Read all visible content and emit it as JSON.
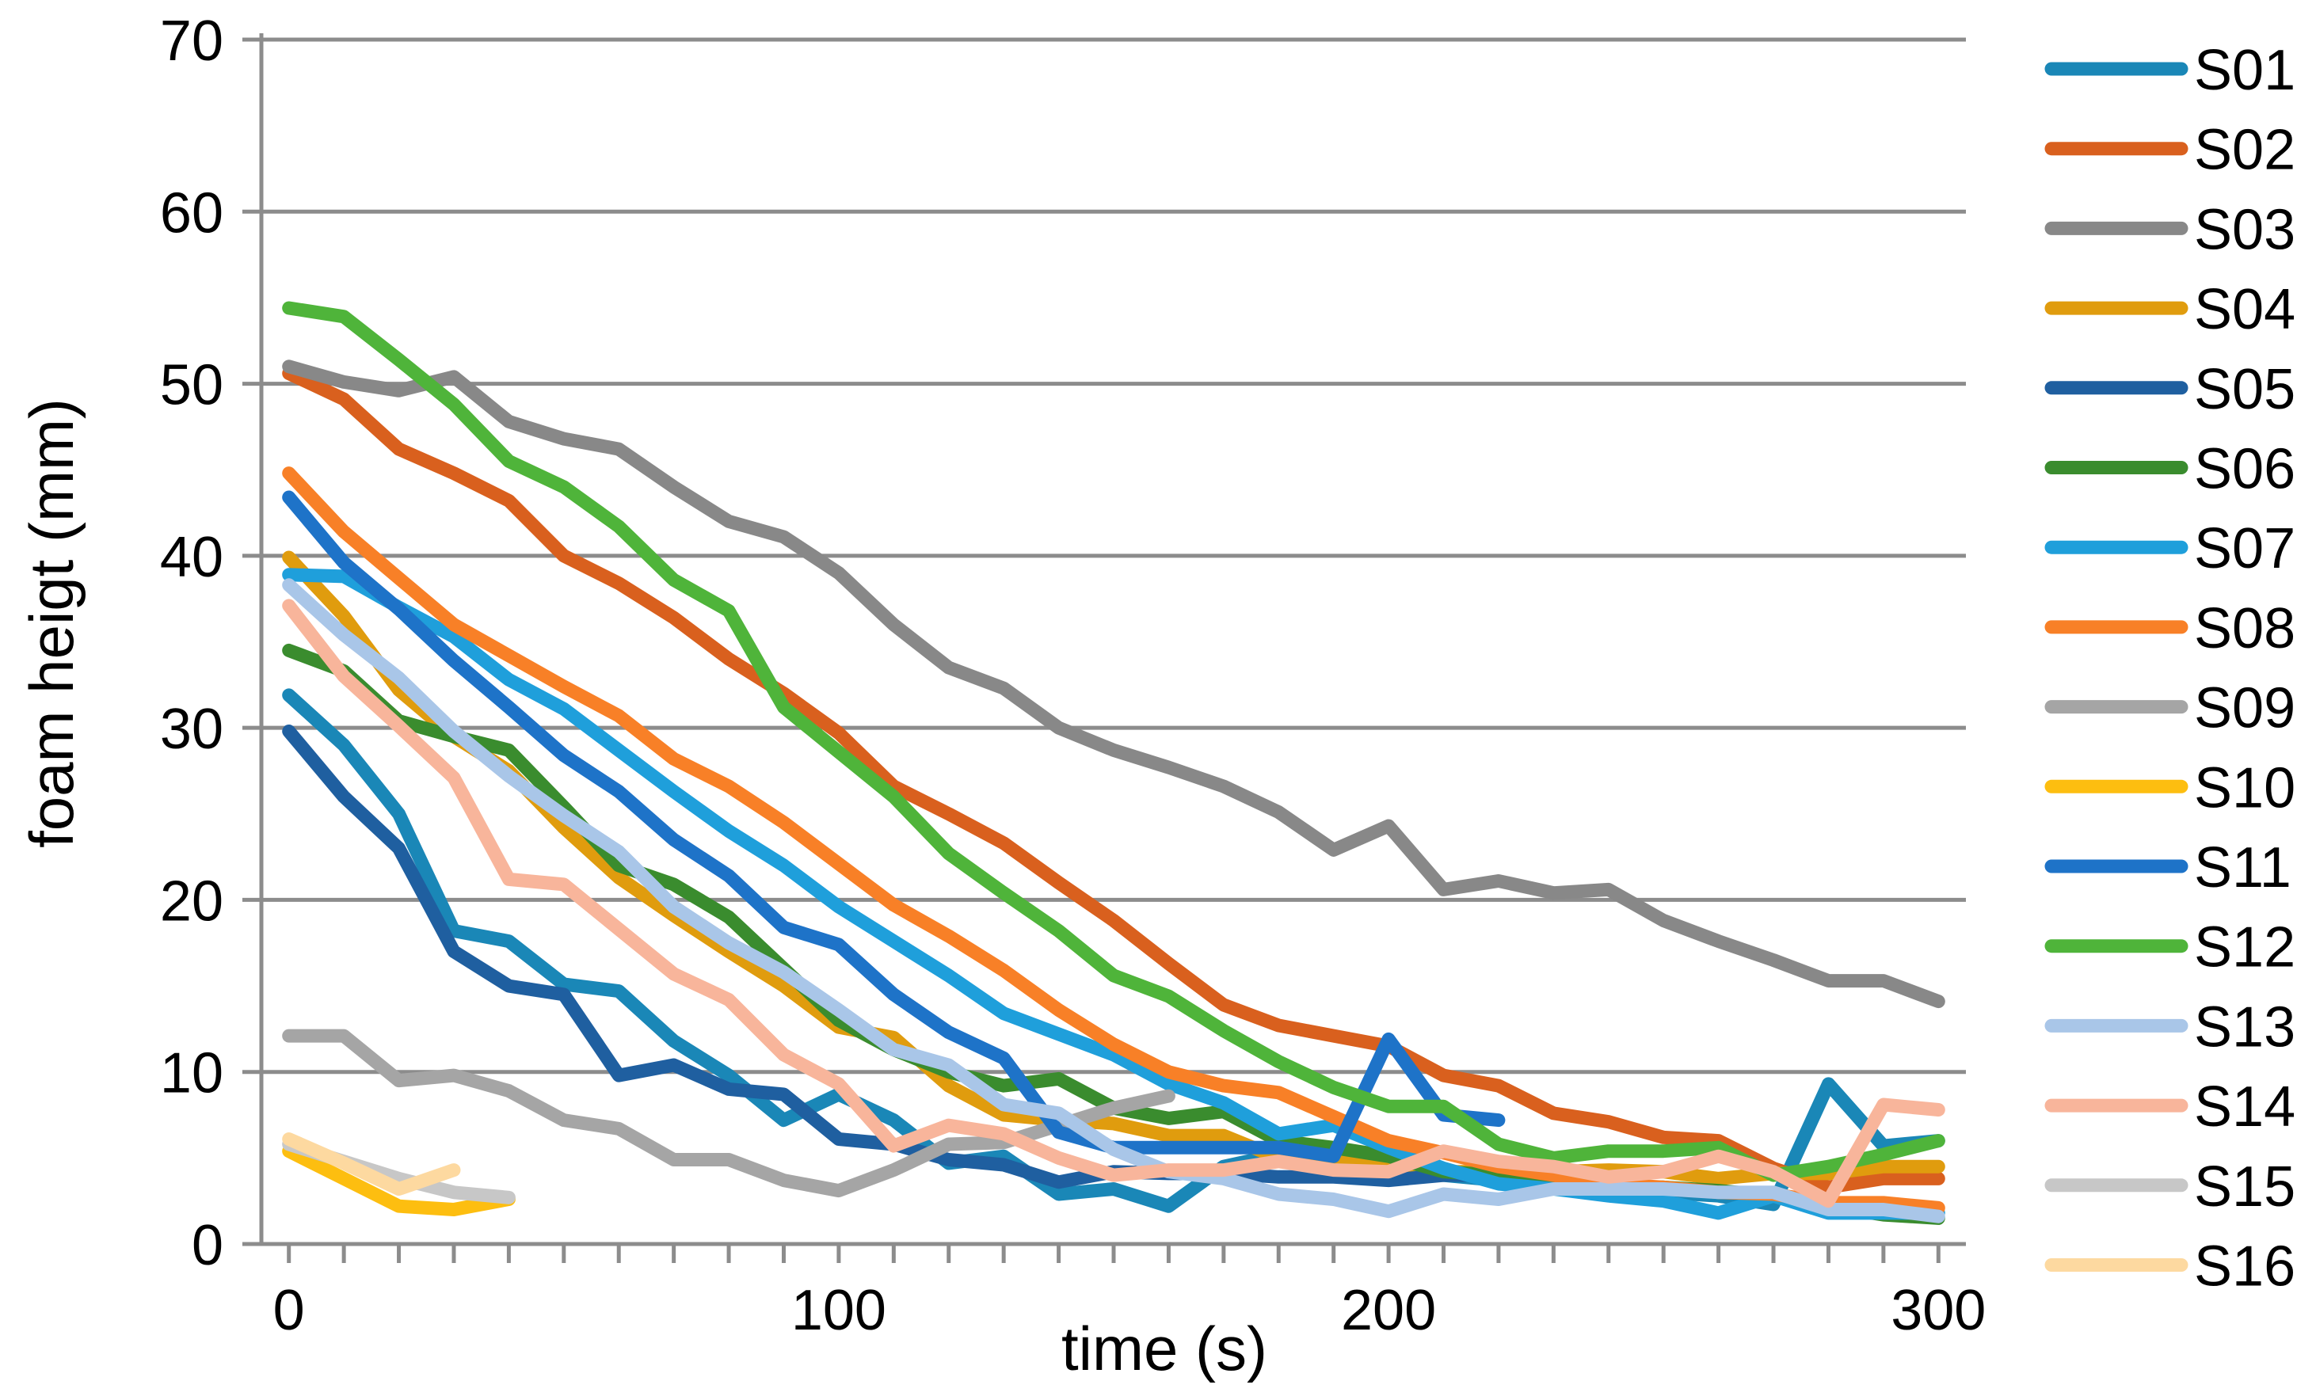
{
  "chart_data": {
    "type": "line",
    "title": "",
    "xlabel": "time (s)",
    "ylabel": "foam heigt (mm)",
    "xlim": [
      -5,
      305
    ],
    "ylim": [
      0,
      70
    ],
    "xticks": [
      0,
      100,
      200,
      300
    ],
    "yticks": [
      0,
      10,
      20,
      30,
      40,
      50,
      60,
      70
    ],
    "minor_xtick_step": 10,
    "grid": "horizontal",
    "legend_position": "right",
    "series": [
      {
        "name": "S01",
        "color": "#1A87B7",
        "x": [
          0,
          10,
          20,
          30,
          40,
          50,
          60,
          70,
          80,
          90,
          100,
          110,
          120,
          130,
          140,
          150,
          160,
          170,
          180,
          190,
          200,
          210,
          220,
          230,
          240,
          250,
          260,
          270,
          280,
          290,
          300
        ],
        "y": [
          31.9,
          29,
          25,
          18.2,
          17.6,
          15.1,
          14.7,
          11.8,
          9.8,
          7.2,
          8.7,
          7.2,
          4.7,
          5.1,
          2.9,
          3.2,
          2.2,
          4.5,
          5.2,
          4.5,
          4.3,
          4,
          3.7,
          3.2,
          3.2,
          3,
          2.8,
          2.3,
          9.3,
          5.7,
          6
        ]
      },
      {
        "name": "S02",
        "color": "#D9601E",
        "x": [
          0,
          10,
          20,
          30,
          40,
          50,
          60,
          70,
          80,
          90,
          100,
          110,
          120,
          130,
          140,
          150,
          160,
          170,
          180,
          190,
          200,
          210,
          220,
          230,
          240,
          250,
          260,
          270,
          280,
          290,
          300
        ],
        "y": [
          50.6,
          49.1,
          46.2,
          44.8,
          43.2,
          40,
          38.4,
          36.4,
          34,
          32,
          29.7,
          26.6,
          25,
          23.3,
          21,
          18.8,
          16.3,
          13.9,
          12.7,
          12.1,
          11.5,
          9.8,
          9.2,
          7.6,
          7.1,
          6.2,
          6,
          4.4,
          3.3,
          3.8,
          3.8
        ]
      },
      {
        "name": "S03",
        "color": "#888888",
        "x": [
          0,
          10,
          20,
          30,
          40,
          50,
          60,
          70,
          80,
          90,
          100,
          110,
          120,
          130,
          140,
          150,
          160,
          170,
          180,
          190,
          200,
          210,
          220,
          230,
          240,
          250,
          260,
          270,
          280,
          290,
          300
        ],
        "y": [
          51,
          50.1,
          49.6,
          50.4,
          47.8,
          46.8,
          46.2,
          44,
          42,
          41.1,
          39,
          36,
          33.5,
          32.3,
          30,
          28.7,
          27.7,
          26.6,
          25.1,
          22.9,
          24.3,
          20.6,
          21.1,
          20.4,
          20.6,
          18.8,
          17.6,
          16.5,
          15.3,
          15.3,
          14.1
        ]
      },
      {
        "name": "S04",
        "color": "#E09C0E",
        "x": [
          0,
          10,
          20,
          30,
          40,
          50,
          60,
          70,
          80,
          90,
          100,
          110,
          120,
          130,
          140,
          150,
          160,
          170,
          180,
          190,
          200,
          210,
          220,
          230,
          240,
          250,
          260,
          270,
          280,
          290,
          300
        ],
        "y": [
          39.9,
          36.5,
          32.2,
          29.5,
          27.5,
          24.2,
          21.3,
          19.1,
          17,
          15,
          12.6,
          12,
          9.2,
          7.5,
          7.2,
          7,
          6.3,
          6.3,
          5,
          4.8,
          4.5,
          4.2,
          4.2,
          4.2,
          4.3,
          4.2,
          3.8,
          4.1,
          4.1,
          4.5,
          4.5
        ]
      },
      {
        "name": "S05",
        "color": "#1F5FA0",
        "x": [
          0,
          10,
          20,
          30,
          40,
          50,
          60,
          70,
          80,
          90,
          100,
          110,
          120,
          130,
          140,
          150,
          160,
          170,
          180,
          190,
          200,
          210,
          220
        ],
        "y": [
          29.8,
          26,
          23,
          17,
          15,
          14.5,
          9.8,
          10.4,
          9,
          8.7,
          6.1,
          5.8,
          4.9,
          4.6,
          3.6,
          4.2,
          4.1,
          4.1,
          3.9,
          3.9,
          3.7,
          4,
          4
        ]
      },
      {
        "name": "S06",
        "color": "#3A8C2E",
        "x": [
          0,
          10,
          20,
          30,
          40,
          50,
          60,
          70,
          80,
          90,
          100,
          110,
          120,
          130,
          140,
          150,
          160,
          170,
          180,
          190,
          200,
          210,
          220,
          230,
          240,
          250,
          260,
          270,
          280,
          290,
          300
        ],
        "y": [
          34.5,
          33.3,
          30.4,
          29.5,
          28.7,
          25.4,
          22,
          20.9,
          19,
          16,
          13,
          11.3,
          10,
          9.2,
          9.6,
          7.9,
          7.3,
          7.7,
          6,
          5.6,
          5.1,
          4.2,
          4,
          3.7,
          3.2,
          3.3,
          3.1,
          2.8,
          2.2,
          1.7,
          1.5
        ]
      },
      {
        "name": "S07",
        "color": "#1F9FDB",
        "x": [
          0,
          10,
          20,
          30,
          40,
          50,
          60,
          70,
          80,
          90,
          100,
          110,
          120,
          130,
          140,
          150,
          160,
          170,
          180,
          190,
          200,
          210,
          220,
          230,
          240,
          250,
          260,
          270,
          280,
          290,
          300
        ],
        "y": [
          38.9,
          38.8,
          37,
          35.3,
          32.8,
          31.1,
          28.7,
          26.3,
          24,
          22,
          19.6,
          17.6,
          15.6,
          13.4,
          12.2,
          11,
          9.3,
          8.2,
          6.4,
          6.9,
          5.6,
          4.4,
          3.5,
          3.2,
          2.8,
          2.5,
          1.8,
          2.8,
          1.8,
          1.8,
          1.8
        ]
      },
      {
        "name": "S08",
        "color": "#F88027",
        "x": [
          0,
          10,
          20,
          30,
          40,
          50,
          60,
          70,
          80,
          90,
          100,
          110,
          120,
          130,
          140,
          150,
          160,
          170,
          180,
          190,
          200,
          210,
          220,
          230,
          240,
          250,
          260,
          270,
          280,
          290,
          300
        ],
        "y": [
          44.8,
          41.4,
          38.7,
          36,
          34.2,
          32.4,
          30.7,
          28.2,
          26.6,
          24.5,
          22.1,
          19.7,
          17.9,
          15.9,
          13.6,
          11.6,
          10,
          9.2,
          8.8,
          7.4,
          6,
          5.3,
          4.5,
          4,
          3.5,
          3.3,
          3,
          2.9,
          2.4,
          2.4,
          2.1
        ]
      },
      {
        "name": "S09",
        "color": "#A5A5A5",
        "x": [
          0,
          10,
          20,
          30,
          40,
          50,
          60,
          70,
          80,
          90,
          100,
          110,
          120,
          130,
          140,
          150,
          160
        ],
        "y": [
          12.1,
          12.1,
          9.5,
          9.8,
          8.9,
          7.2,
          6.7,
          4.9,
          4.9,
          3.7,
          3.1,
          4.3,
          5.8,
          5.9,
          6.9,
          7.9,
          8.6
        ]
      },
      {
        "name": "S10",
        "color": "#FDBE10",
        "x": [
          0,
          10,
          20,
          30,
          40
        ],
        "y": [
          5.4,
          3.8,
          2.2,
          2,
          2.6
        ]
      },
      {
        "name": "S11",
        "color": "#1E73C8",
        "x": [
          0,
          10,
          20,
          30,
          40,
          50,
          60,
          70,
          80,
          90,
          100,
          110,
          120,
          130,
          140,
          150,
          160,
          170,
          180,
          190,
          200,
          210,
          220
        ],
        "y": [
          43.4,
          39.6,
          36.9,
          33.9,
          31.2,
          28.4,
          26.3,
          23.5,
          21.4,
          18.4,
          17.4,
          14.5,
          12.3,
          10.8,
          6.5,
          5.6,
          5.6,
          5.6,
          5.6,
          5.1,
          11.9,
          7.5,
          7.2
        ]
      },
      {
        "name": "S12",
        "color": "#4FB43A",
        "x": [
          0,
          10,
          20,
          30,
          40,
          50,
          60,
          70,
          80,
          90,
          100,
          110,
          120,
          130,
          140,
          150,
          160,
          170,
          180,
          190,
          200,
          210,
          220,
          230,
          240,
          250,
          260,
          270,
          280,
          290,
          300
        ],
        "y": [
          54.4,
          53.9,
          51.4,
          48.8,
          45.5,
          44,
          41.7,
          38.6,
          36.8,
          31.2,
          28.6,
          26,
          22.7,
          20.4,
          18.2,
          15.6,
          14.4,
          12.4,
          10.6,
          9.1,
          8,
          8,
          5.8,
          5,
          5.4,
          5.4,
          5.6,
          4,
          4.5,
          5.2,
          6
        ]
      },
      {
        "name": "S13",
        "color": "#A9C6E8",
        "x": [
          0,
          10,
          20,
          30,
          40,
          50,
          60,
          70,
          80,
          90,
          100,
          110,
          120,
          130,
          140,
          150,
          160,
          170,
          180,
          190,
          200,
          210,
          220,
          230,
          240,
          250,
          260,
          270,
          280,
          290,
          300
        ],
        "y": [
          38.3,
          35.4,
          32.9,
          29.8,
          27.2,
          24.9,
          22.8,
          19.6,
          17.5,
          15.8,
          13.6,
          11.3,
          10.4,
          8.1,
          7.6,
          5.5,
          4.2,
          3.8,
          2.9,
          2.6,
          1.9,
          2.9,
          2.6,
          3.2,
          3.2,
          3.2,
          3,
          3,
          2,
          2,
          1.6
        ]
      },
      {
        "name": "S14",
        "color": "#F8B59B",
        "x": [
          0,
          10,
          20,
          30,
          40,
          50,
          60,
          70,
          80,
          90,
          100,
          110,
          120,
          130,
          140,
          150,
          160,
          170,
          180,
          190,
          200,
          210,
          220,
          230,
          240,
          250,
          260,
          270,
          280,
          290,
          300
        ],
        "y": [
          37.1,
          33,
          30.1,
          27.1,
          21.2,
          20.9,
          18.3,
          15.7,
          14.2,
          11,
          9.3,
          5.7,
          6.9,
          6.4,
          5,
          4,
          4.3,
          4.3,
          4.8,
          4.3,
          4.2,
          5.4,
          4.8,
          4.5,
          3.9,
          4.2,
          5.1,
          4.2,
          2.5,
          8.1,
          7.8
        ]
      },
      {
        "name": "S15",
        "color": "#C7C7C7",
        "x": [
          0,
          10,
          20,
          30,
          40
        ],
        "y": [
          5.8,
          4.8,
          3.8,
          3,
          2.7
        ]
      },
      {
        "name": "S16",
        "color": "#FDD9A0",
        "x": [
          0,
          10,
          20,
          30
        ],
        "y": [
          6.1,
          4.7,
          3.2,
          4.3
        ]
      }
    ]
  }
}
